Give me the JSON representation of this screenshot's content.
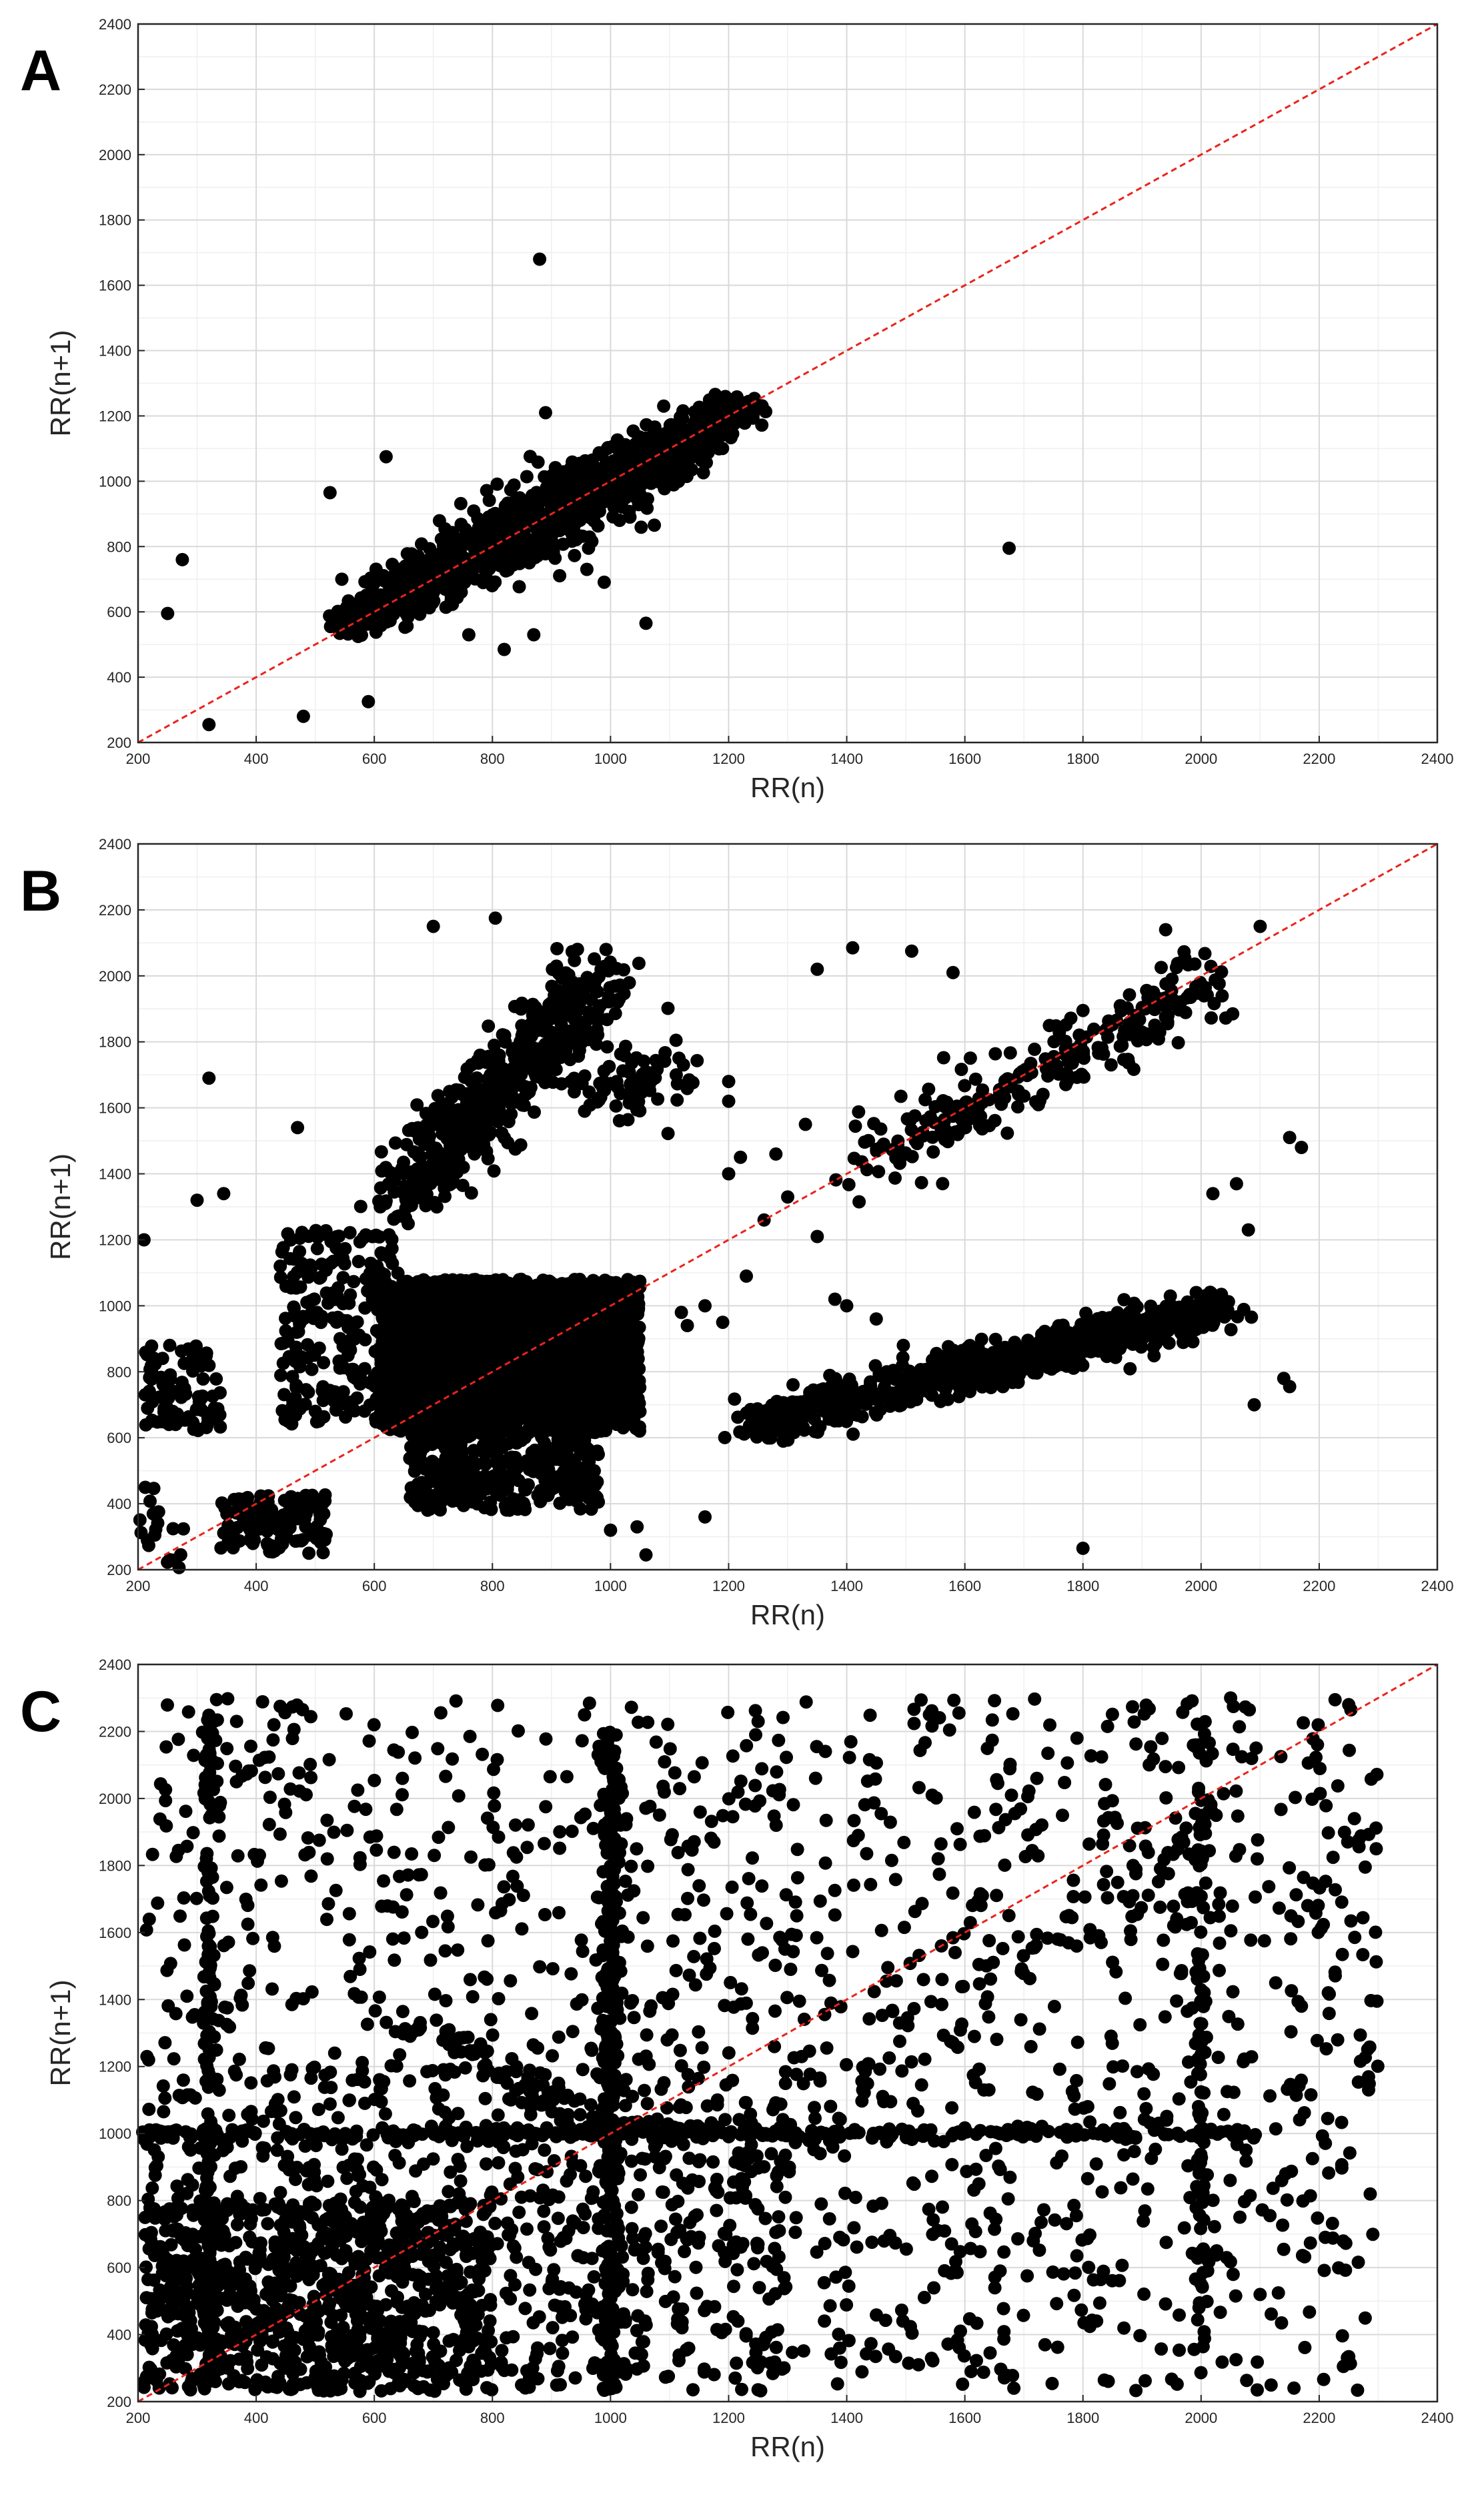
{
  "chart_data": [
    {
      "type": "scatter",
      "panel_label": "A",
      "xlabel": "RR(n)",
      "ylabel": "RR(n+1)",
      "xlim": [
        200,
        2400
      ],
      "ylim": [
        200,
        2400
      ],
      "xticks": [
        200,
        400,
        600,
        800,
        1000,
        1200,
        1400,
        1600,
        1800,
        2000,
        2200,
        2400
      ],
      "yticks": [
        200,
        400,
        600,
        800,
        1000,
        1200,
        1400,
        1600,
        1800,
        2000,
        2200,
        2400
      ],
      "grid": true,
      "identity_line": {
        "from": [
          200,
          200
        ],
        "to": [
          2400,
          2400
        ],
        "color": "#e8241c",
        "style": "dashed"
      },
      "marker_color": "#000000",
      "clusters": [
        {
          "shape": "diagonal_band",
          "from": [
            550,
            555
          ],
          "to": [
            1230,
            1230
          ],
          "count": 1100,
          "spread": 45,
          "jitter": 35
        }
      ],
      "points": [
        [
          880,
          1680
        ],
        [
          250,
          595
        ],
        [
          275,
          760
        ],
        [
          320,
          255
        ],
        [
          480,
          280
        ],
        [
          590,
          325
        ],
        [
          525,
          965
        ],
        [
          545,
          700
        ],
        [
          620,
          1075
        ],
        [
          760,
          530
        ],
        [
          820,
          485
        ],
        [
          870,
          530
        ],
        [
          960,
          730
        ],
        [
          1060,
          565
        ],
        [
          1675,
          795
        ],
        [
          1090,
          1230
        ],
        [
          890,
          1210
        ],
        [
          1195,
          1230
        ],
        [
          1150,
          1090
        ]
      ]
    },
    {
      "type": "scatter",
      "panel_label": "B",
      "xlabel": "RR(n)",
      "ylabel": "RR(n+1)",
      "xlim": [
        200,
        2400
      ],
      "ylim": [
        200,
        2400
      ],
      "xticks": [
        200,
        400,
        600,
        800,
        1000,
        1200,
        1400,
        1600,
        1800,
        2000,
        2200,
        2400
      ],
      "yticks": [
        200,
        400,
        600,
        800,
        1000,
        1200,
        1400,
        1600,
        1800,
        2000,
        2200,
        2400
      ],
      "grid": true,
      "identity_line": {
        "from": [
          200,
          200
        ],
        "to": [
          2400,
          2400
        ],
        "color": "#e8241c",
        "style": "dashed"
      },
      "marker_color": "#000000",
      "clusters": [
        {
          "shape": "box",
          "x": [
            610,
            1050
          ],
          "y": [
            620,
            1080
          ],
          "count": 2600
        },
        {
          "shape": "box",
          "x": [
            660,
            980
          ],
          "y": [
            380,
            640
          ],
          "count": 380
        },
        {
          "shape": "box",
          "x": [
            440,
            640
          ],
          "y": [
            640,
            1230
          ],
          "count": 240
        },
        {
          "shape": "line",
          "from": [
            650,
            1330
          ],
          "to": [
            980,
            2000
          ],
          "count": 520,
          "jitter": 55
        },
        {
          "shape": "line",
          "from": [
            960,
            1720
          ],
          "to": [
            1100,
            1650
          ],
          "count": 80,
          "jitter": 60
        },
        {
          "shape": "line",
          "from": [
            1240,
            640
          ],
          "to": [
            2030,
            990
          ],
          "count": 700,
          "jitter": 38
        },
        {
          "shape": "line",
          "from": [
            1430,
            1420
          ],
          "to": [
            2020,
            1980
          ],
          "count": 260,
          "jitter": 55
        },
        {
          "shape": "box",
          "x": [
            210,
            340
          ],
          "y": [
            620,
            880
          ],
          "count": 90
        },
        {
          "shape": "box",
          "x": [
            340,
            520
          ],
          "y": [
            250,
            430
          ],
          "count": 130
        },
        {
          "shape": "box",
          "x": [
            200,
            280
          ],
          "y": [
            200,
            450
          ],
          "count": 20
        }
      ],
      "points": [
        [
          700,
          2150
        ],
        [
          805,
          2175
        ],
        [
          320,
          1690
        ],
        [
          470,
          1540
        ],
        [
          210,
          1200
        ],
        [
          345,
          1340
        ],
        [
          300,
          1320
        ],
        [
          1410,
          2085
        ],
        [
          1350,
          2020
        ],
        [
          1510,
          2075
        ],
        [
          1580,
          2010
        ],
        [
          1940,
          2140
        ],
        [
          2100,
          2150
        ],
        [
          2150,
          1510
        ],
        [
          2170,
          1480
        ],
        [
          2020,
          1340
        ],
        [
          2060,
          1370
        ],
        [
          2080,
          1230
        ],
        [
          2090,
          700
        ],
        [
          2140,
          780
        ],
        [
          2150,
          755
        ],
        [
          1800,
          265
        ],
        [
          1045,
          330
        ],
        [
          1060,
          245
        ],
        [
          1000,
          320
        ],
        [
          1160,
          360
        ],
        [
          1200,
          1680
        ],
        [
          1200,
          1620
        ],
        [
          1330,
          1550
        ],
        [
          1280,
          1460
        ],
        [
          1200,
          1400
        ],
        [
          1220,
          1450
        ],
        [
          1260,
          1260
        ],
        [
          1300,
          1330
        ],
        [
          1230,
          1090
        ],
        [
          1350,
          1210
        ],
        [
          1380,
          1020
        ],
        [
          1400,
          1000
        ],
        [
          1450,
          960
        ],
        [
          1160,
          1000
        ],
        [
          1120,
          980
        ],
        [
          1190,
          950
        ],
        [
          1130,
          940
        ]
      ]
    },
    {
      "type": "scatter",
      "panel_label": "C",
      "xlabel": "RR(n)",
      "ylabel": "RR(n+1)",
      "xlim": [
        200,
        2400
      ],
      "ylim": [
        200,
        2400
      ],
      "xticks": [
        200,
        400,
        600,
        800,
        1000,
        1200,
        1400,
        1600,
        1800,
        2000,
        2200,
        2400
      ],
      "yticks": [
        200,
        400,
        600,
        800,
        1000,
        1200,
        1400,
        1600,
        1800,
        2000,
        2200,
        2400
      ],
      "grid": true,
      "identity_line": {
        "from": [
          200,
          200
        ],
        "to": [
          2400,
          2400
        ],
        "color": "#e8241c",
        "style": "dashed"
      },
      "marker_color": "#000000",
      "clusters": [
        {
          "shape": "box",
          "x": [
            210,
            2300
          ],
          "y": [
            230,
            2300
          ],
          "count": 1500
        },
        {
          "shape": "box",
          "x": [
            210,
            800
          ],
          "y": [
            230,
            800
          ],
          "count": 700
        },
        {
          "shape": "box",
          "x": [
            210,
            1300
          ],
          "y": [
            230,
            1200
          ],
          "count": 500
        },
        {
          "shape": "line",
          "from": [
            210,
            1000
          ],
          "to": [
            2100,
            1000
          ],
          "count": 320,
          "jitter": 8
        },
        {
          "shape": "line",
          "from": [
            1000,
            230
          ],
          "to": [
            1000,
            2200
          ],
          "count": 300,
          "jitter": 14
        },
        {
          "shape": "line",
          "from": [
            320,
            230
          ],
          "to": [
            320,
            2250
          ],
          "count": 140,
          "jitter": 8
        },
        {
          "shape": "line",
          "from": [
            2000,
            300
          ],
          "to": [
            2000,
            2250
          ],
          "count": 90,
          "jitter": 10
        },
        {
          "shape": "line",
          "from": [
            650,
            1350
          ],
          "to": [
            1000,
            1000
          ],
          "count": 80,
          "jitter": 30
        },
        {
          "shape": "line",
          "from": [
            800,
            230
          ],
          "to": [
            2050,
            2000
          ],
          "count": 90,
          "jitter": 40
        }
      ],
      "points": [
        [
          1540,
          2250
        ],
        [
          1590,
          2255
        ],
        [
          1250,
          2230
        ],
        [
          430,
          2220
        ],
        [
          2050,
          2300
        ],
        [
          2250,
          2280
        ]
      ]
    }
  ]
}
